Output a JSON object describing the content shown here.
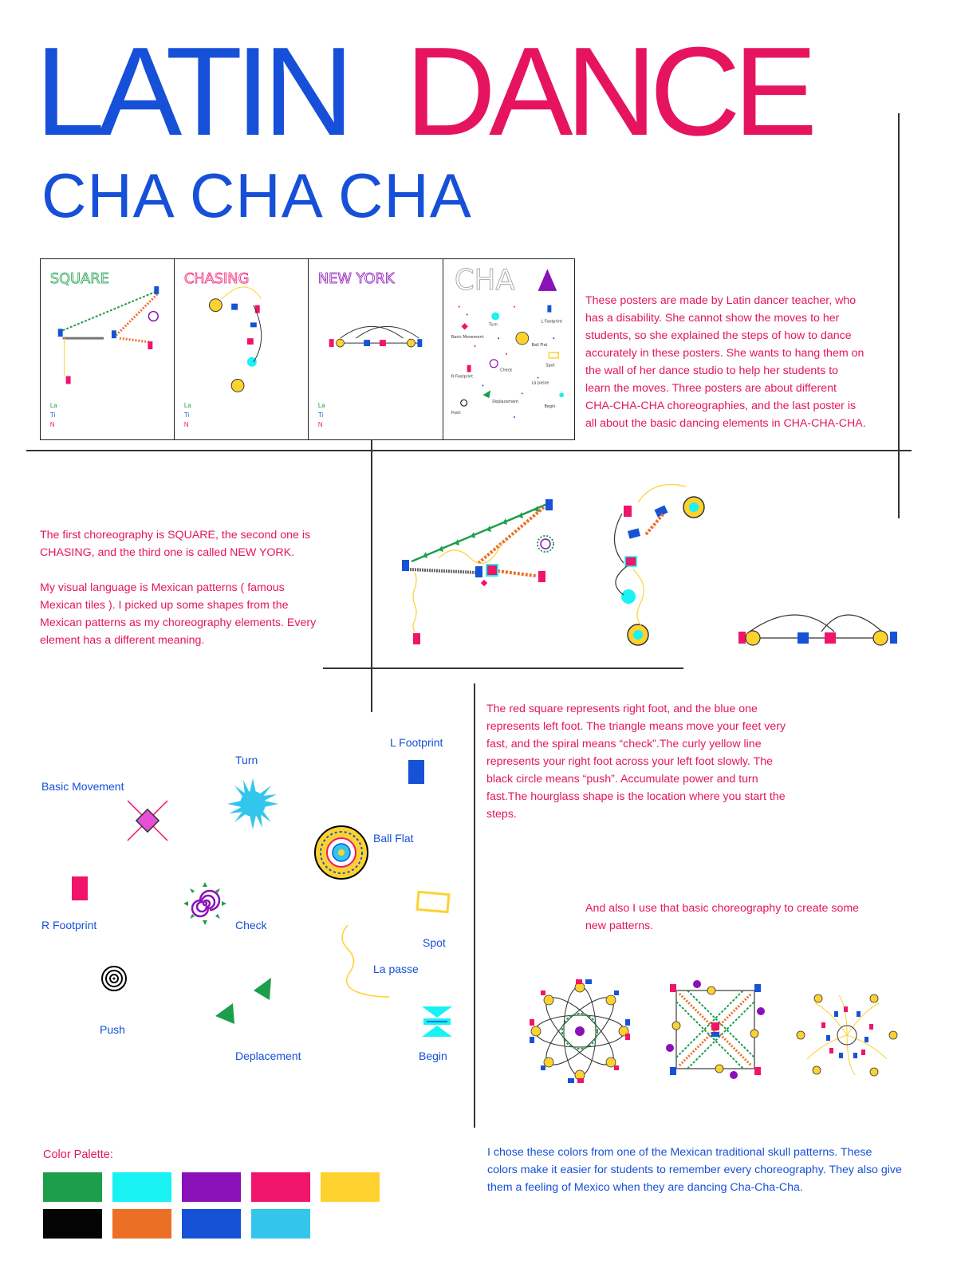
{
  "title": {
    "part1": "LATIN",
    "part2": "DANCE"
  },
  "subtitle": "CHA CHA CHA",
  "posters": [
    {
      "name": "square",
      "heading": "SQUARE"
    },
    {
      "name": "chasing",
      "heading": "CHASING"
    },
    {
      "name": "new-york",
      "heading": "NEW YORK"
    },
    {
      "name": "cha",
      "heading": "CHA"
    }
  ],
  "cha_poster_labels": [
    "Turn",
    "L Footprint",
    "Basic Movement",
    "Ball Flat",
    "Check",
    "Spot",
    "R Footprint",
    "La passe",
    "Deplacement",
    "Begin",
    "Push"
  ],
  "intro_text": "These posters are made by Latin dancer teacher, who has a disability. She cannot show the moves to her students, so she explained the steps of how to dance accurately in these posters. She wants to hang them on the wall of her dance studio to help her students to learn the moves. Three posters are about different CHA-CHA-CHA choreographies, and the last poster is all about the basic dancing elements in CHA-CHA-CHA.",
  "choreo_text": {
    "p1": "The first choreography is SQUARE, the second one is CHASING, and the third one is called NEW YORK.",
    "p2": "My visual language is Mexican patterns ( famous Mexican tiles ). I picked up some shapes from the Mexican patterns as my choreography elements. Every element has a different meaning."
  },
  "meaning_text": "The red square represents right foot, and the blue one represents left foot. The triangle means move your feet very fast, and the spiral means “check”.The curly yellow line represents your right foot across your left foot slowly. The black circle means “push”. Accumulate power and turn fast.The hourglass shape is the location where you start the steps.",
  "patterns_text": "And also I use that basic choreography to create some new patterns.",
  "legend": {
    "basic_movement": "Basic Movement",
    "turn": "Turn",
    "l_footprint": "L Footprint",
    "ball_flat": "Ball Flat",
    "r_footprint": "R Footprint",
    "check": "Check",
    "spot": "Spot",
    "la_passe": "La passe",
    "push": "Push",
    "deplacement": "Deplacement",
    "begin": "Begin"
  },
  "palette": {
    "title": "Color Palette:",
    "colors": [
      "#1d9e4a",
      "#19f2f2",
      "#8a10b8",
      "#f0146a",
      "#fdd22f",
      "#050505",
      "#ec6f26",
      "#1652d6",
      "#33c6ec"
    ]
  },
  "colors_text": "I chose these colors from one of the Mexican traditional skull patterns. These colors make it easier for students to remember every choreography. They also give them a feeling of Mexico when they are dancing Cha-Cha-Cha.",
  "accent_colors": {
    "blue": "#1650d8",
    "pink": "#e6145f"
  }
}
